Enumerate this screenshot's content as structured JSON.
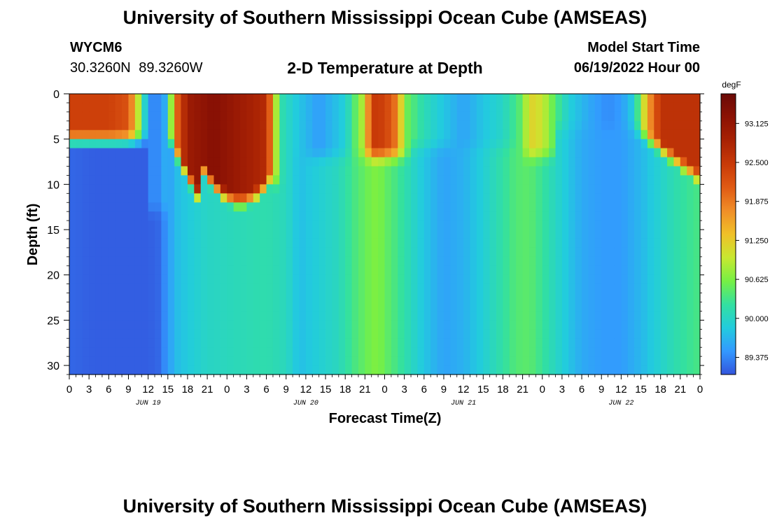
{
  "header": {
    "title": "University of Southern Mississippi Ocean Cube (AMSEAS)",
    "station_id": "WYCM6",
    "location": "30.3260N  89.3260W",
    "subtitle": "2-D Temperature at Depth",
    "model_start_label": "Model Start Time",
    "model_start_value": "06/19/2022 Hour 00"
  },
  "footer": {
    "repeated_title": "University of Southern Mississippi Ocean Cube (AMSEAS)"
  },
  "chart_data": {
    "type": "heatmap",
    "title": "2-D Temperature at Depth",
    "xlabel": "Forecast Time(Z)",
    "ylabel": "Depth (ft)",
    "x_hours_range": [
      0,
      96
    ],
    "x_tick_labels": [
      "0",
      "3",
      "6",
      "9",
      "12",
      "15",
      "18",
      "21",
      "0",
      "3",
      "6",
      "9",
      "12",
      "15",
      "18",
      "21",
      "0",
      "3",
      "6",
      "9",
      "12",
      "15",
      "18",
      "21",
      "0",
      "3",
      "6",
      "9",
      "12",
      "15",
      "18",
      "21",
      "0"
    ],
    "day_labels": [
      {
        "label": "JUN 19",
        "hour": 12
      },
      {
        "label": "JUN 20",
        "hour": 36
      },
      {
        "label": "JUN 21",
        "hour": 60
      },
      {
        "label": "JUN 22",
        "hour": 84
      }
    ],
    "depth_range_ft": [
      0,
      31
    ],
    "y_ticks": [
      0,
      5,
      10,
      15,
      20,
      25,
      30
    ],
    "colorbar": {
      "unit": "degF",
      "range": [
        89.1,
        93.6
      ],
      "tick_labels": [
        "93.125",
        "92.500",
        "91.875",
        "91.250",
        "90.625",
        "90.000",
        "89.375"
      ],
      "colors": [
        "#3355dd",
        "#3399ff",
        "#22ccdd",
        "#33e0a0",
        "#77f044",
        "#c8e830",
        "#f0c028",
        "#f08e28",
        "#e05a14",
        "#c83a08",
        "#a82204",
        "#8c1204",
        "#6a0a06"
      ]
    },
    "surface_temperature_by_hour": [
      [
        0,
        92.4
      ],
      [
        3,
        92.4
      ],
      [
        6,
        92.4
      ],
      [
        9,
        92.2
      ],
      [
        11,
        90.5
      ],
      [
        12,
        89.4
      ],
      [
        13.5,
        89.4
      ],
      [
        15,
        89.7
      ],
      [
        16,
        91.8
      ],
      [
        18,
        93.0
      ],
      [
        22,
        93.3
      ],
      [
        26,
        93.0
      ],
      [
        30,
        92.7
      ],
      [
        32,
        90.2
      ],
      [
        34,
        89.9
      ],
      [
        38,
        89.5
      ],
      [
        42,
        89.9
      ],
      [
        45,
        91.0
      ],
      [
        46,
        92.5
      ],
      [
        48,
        92.4
      ],
      [
        50,
        91.8
      ],
      [
        51,
        90.6
      ],
      [
        54,
        90.1
      ],
      [
        57,
        89.8
      ],
      [
        60,
        89.55
      ],
      [
        63,
        89.8
      ],
      [
        66,
        90.0
      ],
      [
        69,
        90.5
      ],
      [
        70,
        91.2
      ],
      [
        72,
        91.0
      ],
      [
        74,
        90.4
      ],
      [
        76,
        89.9
      ],
      [
        79,
        89.6
      ],
      [
        82,
        89.4
      ],
      [
        84,
        89.5
      ],
      [
        86,
        89.9
      ],
      [
        88,
        91.5
      ],
      [
        90,
        92.6
      ],
      [
        93,
        92.6
      ],
      [
        96,
        92.6
      ]
    ],
    "deep_temperature_by_hour": [
      [
        0,
        89.2
      ],
      [
        4,
        89.15
      ],
      [
        8,
        89.15
      ],
      [
        12,
        89.15
      ],
      [
        13.5,
        89.2
      ],
      [
        15,
        89.5
      ],
      [
        16.5,
        89.75
      ],
      [
        18,
        89.85
      ],
      [
        21,
        90.0
      ],
      [
        24,
        90.05
      ],
      [
        27,
        90.1
      ],
      [
        30,
        90.15
      ],
      [
        33,
        90.05
      ],
      [
        35,
        89.75
      ],
      [
        37,
        89.85
      ],
      [
        39,
        89.95
      ],
      [
        41,
        90.05
      ],
      [
        43,
        90.3
      ],
      [
        45,
        90.5
      ],
      [
        46,
        90.6
      ],
      [
        47,
        90.65
      ],
      [
        48,
        90.5
      ],
      [
        50,
        90.3
      ],
      [
        52,
        90.05
      ],
      [
        54,
        89.8
      ],
      [
        57,
        89.55
      ],
      [
        60,
        89.65
      ],
      [
        63,
        89.9
      ],
      [
        66,
        90.2
      ],
      [
        68,
        90.4
      ],
      [
        70,
        90.45
      ],
      [
        72,
        90.25
      ],
      [
        75,
        89.9
      ],
      [
        78,
        89.6
      ],
      [
        81,
        89.5
      ],
      [
        84,
        89.5
      ],
      [
        87,
        89.7
      ],
      [
        90,
        89.95
      ],
      [
        93,
        90.2
      ],
      [
        96,
        90.35
      ]
    ]
  }
}
